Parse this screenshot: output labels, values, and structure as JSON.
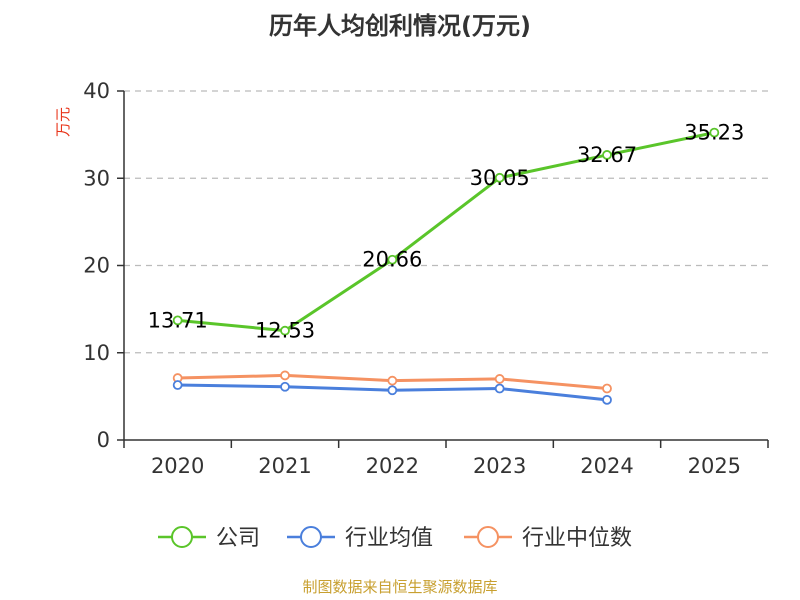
{
  "chart_data": {
    "type": "line",
    "title": "历年人均创利情况(万元)",
    "ylabel": "万元",
    "xlabel": "",
    "categories": [
      "2020",
      "2021",
      "2022",
      "2023",
      "2024",
      "2025"
    ],
    "ylim": [
      0,
      40
    ],
    "yticks": [
      0,
      10,
      20,
      30,
      40
    ],
    "grid": true,
    "legend_position": "bottom",
    "series": [
      {
        "name": "公司",
        "color": "#5ac52a",
        "values": [
          13.71,
          12.53,
          20.66,
          30.05,
          32.67,
          35.23
        ],
        "show_labels": true
      },
      {
        "name": "行业均值",
        "color": "#4a7fdc",
        "values": [
          6.3,
          6.1,
          5.7,
          5.9,
          4.6,
          null
        ],
        "show_labels": false
      },
      {
        "name": "行业中位数",
        "color": "#f59262",
        "values": [
          7.1,
          7.4,
          6.8,
          7.0,
          5.9,
          null
        ],
        "show_labels": false
      }
    ]
  },
  "source": "制图数据来自恒生聚源数据库"
}
